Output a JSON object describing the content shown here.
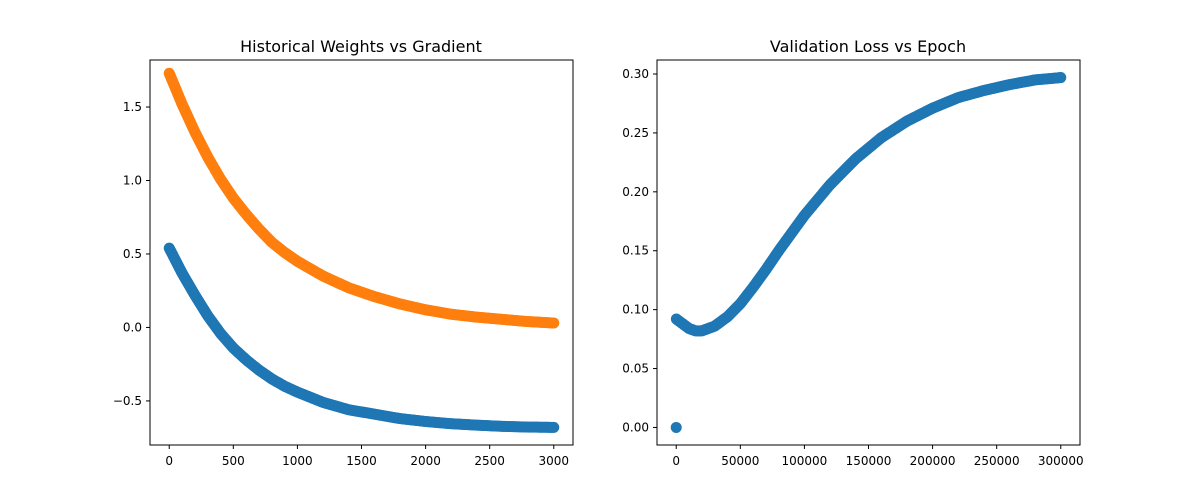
{
  "chart_data": [
    {
      "type": "scatter",
      "title": "Historical Weights vs Gradient",
      "xlabel": "",
      "ylabel": "",
      "xlim": [
        -150,
        3150
      ],
      "ylim": [
        -0.8,
        1.82
      ],
      "x_ticks": [
        0,
        500,
        1000,
        1500,
        2000,
        2500,
        3000
      ],
      "x_tick_labels": [
        "0",
        "500",
        "1000",
        "1500",
        "2000",
        "2500",
        "3000"
      ],
      "y_ticks": [
        -0.5,
        0.0,
        0.5,
        1.0,
        1.5
      ],
      "y_tick_labels": [
        "−0.5",
        "0.0",
        "0.5",
        "1.0",
        "1.5"
      ],
      "grid": false,
      "series": [
        {
          "color": "#1f77b4",
          "x": [
            0,
            100,
            200,
            300,
            400,
            500,
            600,
            700,
            800,
            900,
            1000,
            1200,
            1400,
            1600,
            1800,
            2000,
            2200,
            2400,
            2600,
            2800,
            3000
          ],
          "y": [
            0.54,
            0.37,
            0.22,
            0.08,
            -0.04,
            -0.14,
            -0.22,
            -0.29,
            -0.35,
            -0.4,
            -0.44,
            -0.51,
            -0.56,
            -0.59,
            -0.62,
            -0.64,
            -0.655,
            -0.665,
            -0.673,
            -0.678,
            -0.68
          ]
        },
        {
          "color": "#ff7f0e",
          "x": [
            0,
            100,
            200,
            300,
            400,
            500,
            600,
            700,
            800,
            900,
            1000,
            1200,
            1400,
            1600,
            1800,
            2000,
            2200,
            2400,
            2600,
            2800,
            3000
          ],
          "y": [
            1.73,
            1.52,
            1.33,
            1.16,
            1.01,
            0.88,
            0.77,
            0.67,
            0.58,
            0.51,
            0.45,
            0.35,
            0.27,
            0.21,
            0.16,
            0.12,
            0.09,
            0.07,
            0.055,
            0.04,
            0.03
          ]
        }
      ]
    },
    {
      "type": "scatter",
      "title": "Validation Loss vs Epoch",
      "xlabel": "",
      "ylabel": "",
      "xlim": [
        -15000,
        315000
      ],
      "ylim": [
        -0.0149,
        0.3119
      ],
      "x_ticks": [
        0,
        50000,
        100000,
        150000,
        200000,
        250000,
        300000
      ],
      "x_tick_labels": [
        "0",
        "50000",
        "100000",
        "150000",
        "200000",
        "250000",
        "300000"
      ],
      "y_ticks": [
        0.0,
        0.05,
        0.1,
        0.15,
        0.2,
        0.25,
        0.3
      ],
      "y_tick_labels": [
        "0.00",
        "0.05",
        "0.10",
        "0.15",
        "0.20",
        "0.25",
        "0.30"
      ],
      "grid": false,
      "series": [
        {
          "color": "#1f77b4",
          "x": [
            0,
            100,
            5000,
            10000,
            15000,
            20000,
            30000,
            40000,
            50000,
            60000,
            70000,
            80000,
            90000,
            100000,
            120000,
            140000,
            160000,
            180000,
            200000,
            220000,
            240000,
            260000,
            280000,
            300000
          ],
          "y": [
            0.0,
            0.092,
            0.088,
            0.084,
            0.082,
            0.082,
            0.086,
            0.094,
            0.105,
            0.119,
            0.134,
            0.15,
            0.165,
            0.18,
            0.206,
            0.228,
            0.246,
            0.26,
            0.271,
            0.28,
            0.286,
            0.291,
            0.295,
            0.297
          ]
        }
      ]
    }
  ]
}
